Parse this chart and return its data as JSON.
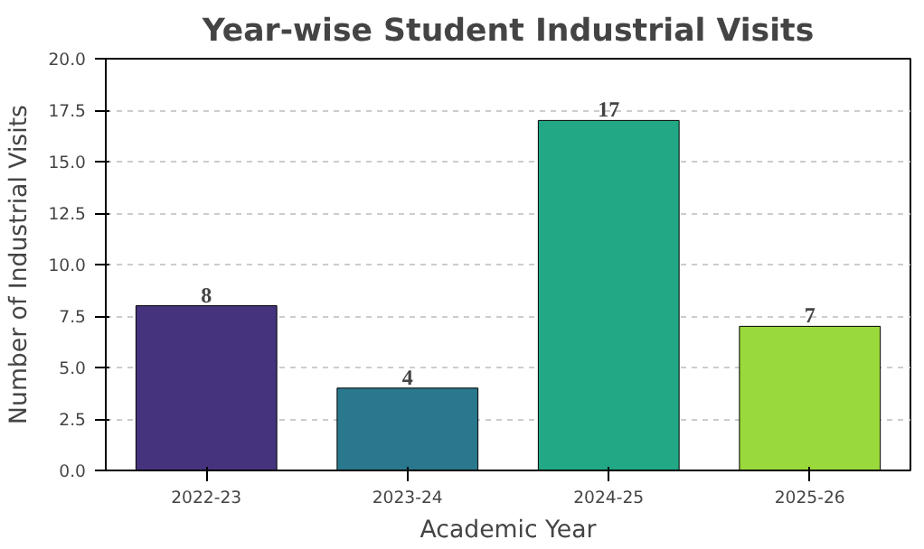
{
  "chart_data": {
    "type": "bar",
    "title": "Year-wise Student Industrial Visits",
    "xlabel": "Academic Year",
    "ylabel": "Number of Industrial Visits",
    "categories": [
      "2022-23",
      "2023-24",
      "2024-25",
      "2025-26"
    ],
    "values": [
      8,
      4,
      17,
      7
    ],
    "colors": [
      "#46337e",
      "#2a788e",
      "#22a884",
      "#9ad93c"
    ],
    "ylim": [
      0,
      20
    ],
    "yticks": [
      {
        "value": 0,
        "label": "0.0"
      },
      {
        "value": 2.5,
        "label": "2.5"
      },
      {
        "value": 5,
        "label": "5.0"
      },
      {
        "value": 7.5,
        "label": "7.5"
      },
      {
        "value": 10,
        "label": "10.0"
      },
      {
        "value": 12.5,
        "label": "12.5"
      },
      {
        "value": 15,
        "label": "15.0"
      },
      {
        "value": 17.5,
        "label": "17.5"
      },
      {
        "value": 20,
        "label": "20.0"
      }
    ],
    "grid": "y",
    "data_labels": true
  }
}
